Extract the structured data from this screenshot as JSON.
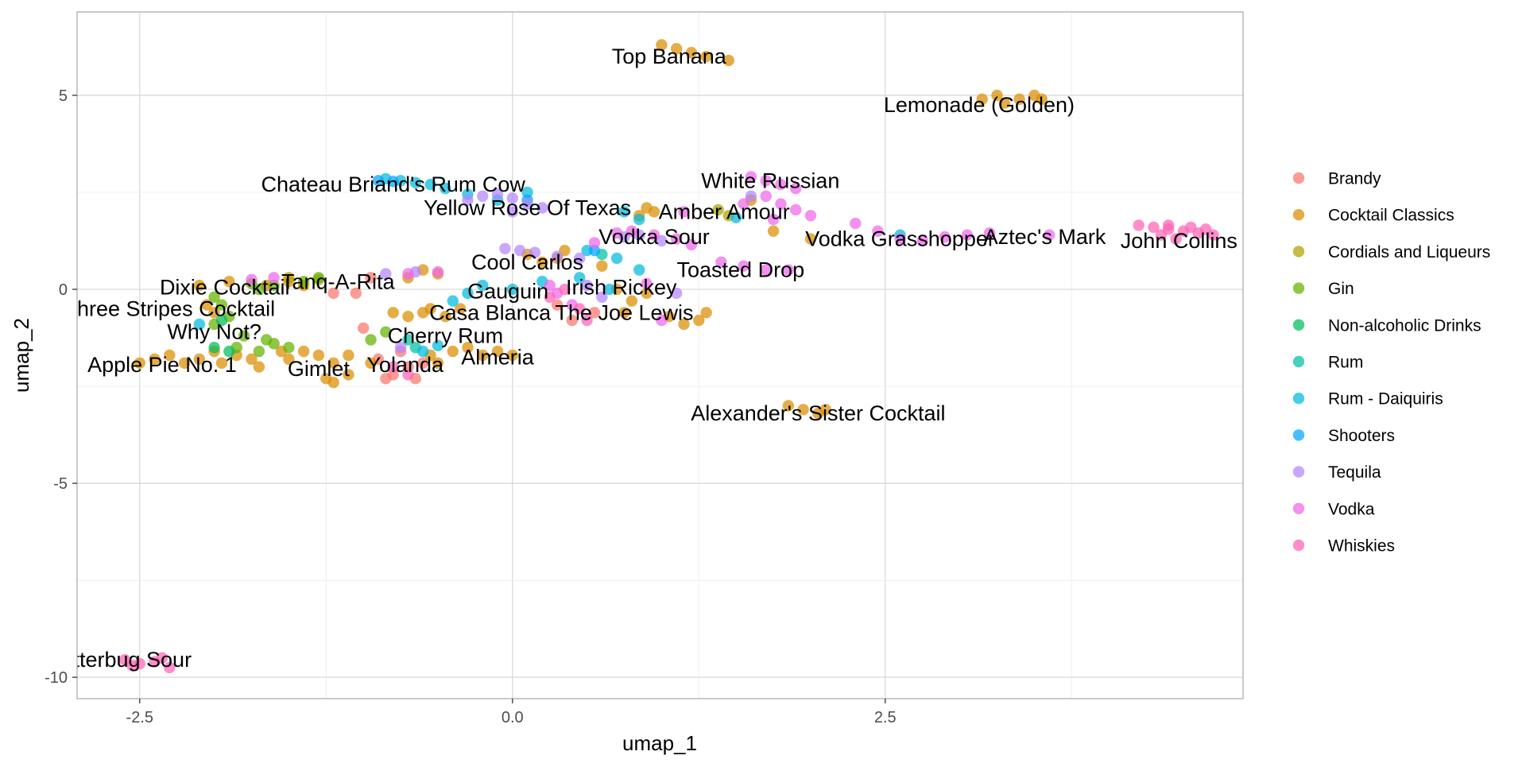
{
  "chart_data": {
    "type": "scatter",
    "title": "",
    "xlabel": "umap_1",
    "ylabel": "umap_2",
    "xlim": [
      -2.92,
      4.9
    ],
    "ylim": [
      -10.55,
      7.15
    ],
    "x_ticks": [
      -2.5,
      0.0,
      2.5
    ],
    "x_tick_labels": [
      "-2.5",
      "0.0",
      "2.5"
    ],
    "y_ticks": [
      5,
      0,
      -5,
      -10
    ],
    "y_tick_labels": [
      "5",
      "0",
      "-5",
      "-10"
    ],
    "grid": true,
    "legend_position": "right",
    "legend_entries": [
      "Brandy",
      "Cocktail Classics",
      "Cordials and Liqueurs",
      "Gin",
      "Non-alcoholic Drinks",
      "Rum",
      "Rum - Daiquiris",
      "Shooters",
      "Tequila",
      "Vodka",
      "Whiskies"
    ],
    "series_colors": [
      "#F8766D",
      "#DB8E00",
      "#AEA200",
      "#64B200",
      "#00BD5C",
      "#00C1A7",
      "#00BADE",
      "#00A6FF",
      "#B385FF",
      "#EF67EB",
      "#FF63B6"
    ],
    "series": [
      {
        "name": "Brandy",
        "points": [
          [
            -1.0,
            -1.0
          ],
          [
            -0.9,
            -1.8
          ],
          [
            -0.8,
            -2.2
          ],
          [
            -0.7,
            -2.0
          ],
          [
            -0.65,
            -2.3
          ],
          [
            -0.85,
            -2.3
          ],
          [
            -0.75,
            -1.6
          ],
          [
            -0.6,
            -1.9
          ],
          [
            0.4,
            -0.8
          ],
          [
            0.55,
            -0.6
          ],
          [
            0.3,
            -0.4
          ],
          [
            -1.2,
            -0.1
          ],
          [
            -1.05,
            -0.1
          ],
          [
            -0.95,
            0.3
          ]
        ]
      },
      {
        "name": "Cocktail Classics",
        "points": [
          [
            -2.5,
            -1.9
          ],
          [
            -2.4,
            -1.8
          ],
          [
            -2.3,
            -1.7
          ],
          [
            -2.2,
            -1.9
          ],
          [
            -2.1,
            -1.8
          ],
          [
            -2.0,
            -1.6
          ],
          [
            -1.95,
            -1.9
          ],
          [
            -1.85,
            -1.7
          ],
          [
            -1.75,
            -1.8
          ],
          [
            -1.7,
            -2.0
          ],
          [
            -1.55,
            -1.6
          ],
          [
            -1.5,
            -1.8
          ],
          [
            -1.4,
            -1.6
          ],
          [
            -1.3,
            -1.7
          ],
          [
            -1.2,
            -1.9
          ],
          [
            -1.1,
            -1.7
          ],
          [
            -1.2,
            -2.4
          ],
          [
            -1.1,
            -2.2
          ],
          [
            -1.25,
            -2.3
          ],
          [
            -0.95,
            -1.9
          ],
          [
            -0.55,
            -1.7
          ],
          [
            -0.5,
            -1.9
          ],
          [
            -0.4,
            -1.6
          ],
          [
            -0.3,
            -1.5
          ],
          [
            -0.2,
            -1.7
          ],
          [
            -0.1,
            -1.6
          ],
          [
            0.0,
            -1.7
          ],
          [
            -0.8,
            -0.6
          ],
          [
            -0.7,
            -0.7
          ],
          [
            -0.6,
            -0.6
          ],
          [
            -0.55,
            -0.5
          ],
          [
            -0.45,
            -0.7
          ],
          [
            -0.35,
            -0.5
          ],
          [
            -0.6,
            0.5
          ],
          [
            -0.7,
            0.3
          ],
          [
            -0.5,
            0.4
          ],
          [
            -2.1,
            0.1
          ],
          [
            -2.05,
            -0.4
          ],
          [
            -2.0,
            -0.6
          ],
          [
            -1.9,
            0.2
          ],
          [
            -1.65,
            0.1
          ],
          [
            -1.5,
            0.2
          ],
          [
            -1.4,
            0.1
          ],
          [
            0.1,
            0.9
          ],
          [
            0.2,
            0.7
          ],
          [
            0.3,
            0.8
          ],
          [
            0.35,
            1.0
          ],
          [
            0.6,
            0.6
          ],
          [
            0.7,
            0.0
          ],
          [
            0.8,
            -0.3
          ],
          [
            0.9,
            -0.1
          ],
          [
            0.75,
            -0.6
          ],
          [
            0.85,
            1.9
          ],
          [
            0.9,
            2.1
          ],
          [
            0.95,
            2.0
          ],
          [
            1.05,
            -0.7
          ],
          [
            1.15,
            -0.9
          ],
          [
            1.25,
            -0.8
          ],
          [
            1.3,
            -0.6
          ],
          [
            1.0,
            6.3
          ],
          [
            1.1,
            6.2
          ],
          [
            1.2,
            6.1
          ],
          [
            1.3,
            6.0
          ],
          [
            1.45,
            5.9
          ],
          [
            3.15,
            4.9
          ],
          [
            3.25,
            5.0
          ],
          [
            3.3,
            4.8
          ],
          [
            3.4,
            4.9
          ],
          [
            3.5,
            5.0
          ],
          [
            3.55,
            4.9
          ],
          [
            1.85,
            -3.0
          ],
          [
            1.95,
            -3.1
          ],
          [
            2.05,
            -3.2
          ],
          [
            2.1,
            -3.1
          ],
          [
            1.6,
            2.3
          ],
          [
            1.75,
            1.5
          ],
          [
            2.0,
            1.3
          ]
        ]
      },
      {
        "name": "Cordials and Liqueurs",
        "points": [
          [
            1.38,
            2.05
          ],
          [
            1.45,
            1.9
          ],
          [
            -1.5,
            0.3
          ],
          [
            -1.3,
            0.25
          ]
        ]
      },
      {
        "name": "Gin",
        "points": [
          [
            -1.6,
            -1.4
          ],
          [
            -1.5,
            -1.5
          ],
          [
            -1.7,
            -1.6
          ],
          [
            -1.85,
            -1.5
          ],
          [
            -1.8,
            -1.2
          ],
          [
            -1.65,
            -1.3
          ],
          [
            -2.0,
            -0.9
          ],
          [
            -1.9,
            -0.7
          ],
          [
            -1.95,
            -0.4
          ],
          [
            -2.0,
            -0.2
          ],
          [
            -1.6,
            0.1
          ],
          [
            -1.7,
            0.0
          ],
          [
            -1.75,
            0.15
          ],
          [
            -1.3,
            0.3
          ],
          [
            -1.4,
            0.2
          ],
          [
            -0.95,
            -1.3
          ],
          [
            -0.85,
            -1.1
          ]
        ]
      },
      {
        "name": "Non-alcoholic Drinks",
        "points": [
          [
            -1.9,
            -1.6
          ],
          [
            -2.0,
            -1.5
          ],
          [
            -1.95,
            -0.8
          ]
        ]
      },
      {
        "name": "Rum",
        "points": [
          [
            -0.65,
            -1.5
          ],
          [
            -0.7,
            -1.3
          ],
          [
            0.6,
            0.9
          ]
        ]
      },
      {
        "name": "Rum - Daiquiris",
        "points": [
          [
            -0.85,
            2.85
          ],
          [
            -0.75,
            2.8
          ],
          [
            -0.65,
            2.75
          ],
          [
            -0.55,
            2.7
          ],
          [
            -0.45,
            2.6
          ],
          [
            -0.3,
            2.45
          ],
          [
            0.1,
            2.5
          ],
          [
            -0.1,
            2.3
          ],
          [
            0.75,
            2.0
          ],
          [
            0.85,
            1.8
          ],
          [
            1.5,
            1.85
          ],
          [
            0.5,
            1.0
          ],
          [
            0.7,
            0.8
          ],
          [
            0.85,
            0.5
          ],
          [
            0.65,
            0.0
          ],
          [
            -0.4,
            -0.3
          ],
          [
            -0.3,
            -0.1
          ],
          [
            -0.2,
            0.1
          ],
          [
            0.0,
            0.0
          ],
          [
            0.2,
            0.2
          ],
          [
            0.45,
            0.3
          ],
          [
            -0.6,
            -1.6
          ],
          [
            -0.5,
            -1.45
          ],
          [
            -2.1,
            -0.9
          ],
          [
            2.6,
            1.4
          ]
        ]
      },
      {
        "name": "Shooters",
        "points": [
          [
            -0.9,
            2.8
          ],
          [
            -0.8,
            2.78
          ],
          [
            0.55,
            1.0
          ],
          [
            0.1,
            2.3
          ]
        ]
      },
      {
        "name": "Tequila",
        "points": [
          [
            -0.3,
            2.3
          ],
          [
            -0.2,
            2.4
          ],
          [
            -0.1,
            2.45
          ],
          [
            0.0,
            2.35
          ],
          [
            0.1,
            2.2
          ],
          [
            0.2,
            2.1
          ],
          [
            0.0,
            2.0
          ],
          [
            -0.05,
            1.05
          ],
          [
            0.05,
            1.0
          ],
          [
            0.15,
            0.95
          ],
          [
            0.3,
            0.85
          ],
          [
            0.45,
            0.8
          ],
          [
            0.75,
            1.35
          ],
          [
            0.85,
            1.4
          ],
          [
            1.0,
            1.25
          ],
          [
            0.5,
            0.1
          ],
          [
            0.6,
            -0.2
          ],
          [
            1.1,
            -0.1
          ],
          [
            -0.75,
            -1.5
          ],
          [
            -0.65,
            0.45
          ],
          [
            -0.85,
            0.4
          ],
          [
            1.6,
            2.4
          ]
        ]
      },
      {
        "name": "Vodka",
        "points": [
          [
            1.6,
            2.9
          ],
          [
            1.7,
            2.8
          ],
          [
            1.8,
            2.7
          ],
          [
            1.9,
            2.6
          ],
          [
            1.7,
            2.4
          ],
          [
            1.8,
            2.2
          ],
          [
            1.9,
            2.05
          ],
          [
            1.75,
            1.8
          ],
          [
            2.0,
            1.9
          ],
          [
            1.55,
            2.2
          ],
          [
            0.7,
            1.45
          ],
          [
            0.8,
            1.5
          ],
          [
            0.95,
            1.4
          ],
          [
            1.1,
            1.3
          ],
          [
            1.2,
            1.15
          ],
          [
            0.55,
            1.2
          ],
          [
            1.4,
            0.7
          ],
          [
            1.55,
            0.6
          ],
          [
            1.7,
            0.5
          ],
          [
            1.85,
            0.5
          ],
          [
            2.3,
            1.7
          ],
          [
            2.45,
            1.5
          ],
          [
            2.6,
            1.3
          ],
          [
            2.75,
            1.25
          ],
          [
            2.9,
            1.35
          ],
          [
            3.05,
            1.4
          ],
          [
            3.2,
            1.45
          ],
          [
            3.6,
            1.4
          ],
          [
            1.15,
            2.0
          ],
          [
            0.25,
            0.1
          ],
          [
            0.4,
            -0.4
          ],
          [
            -0.7,
            0.4
          ],
          [
            -0.5,
            0.45
          ],
          [
            -1.6,
            0.3
          ],
          [
            -1.75,
            0.25
          ],
          [
            0.3,
            -0.1
          ],
          [
            0.9,
            0.15
          ],
          [
            1.0,
            -0.8
          ]
        ]
      },
      {
        "name": "Whiskies",
        "points": [
          [
            4.2,
            1.65
          ],
          [
            4.3,
            1.6
          ],
          [
            4.4,
            1.55
          ],
          [
            4.5,
            1.5
          ],
          [
            4.6,
            1.45
          ],
          [
            4.35,
            1.4
          ],
          [
            4.45,
            1.3
          ],
          [
            4.55,
            1.6
          ],
          [
            4.65,
            1.55
          ],
          [
            4.7,
            1.4
          ],
          [
            4.4,
            1.65
          ],
          [
            -2.6,
            -9.55
          ],
          [
            -2.5,
            -9.65
          ],
          [
            -2.4,
            -9.6
          ],
          [
            -2.3,
            -9.75
          ],
          [
            -2.35,
            -9.5
          ],
          [
            -2.55,
            -9.7
          ],
          [
            0.25,
            -0.2
          ],
          [
            0.35,
            0.0
          ],
          [
            0.45,
            -0.5
          ],
          [
            0.5,
            -0.8
          ],
          [
            -0.7,
            -2.2
          ],
          [
            -0.8,
            -2.0
          ]
        ]
      }
    ],
    "annotations": [
      {
        "text": "Top Banana",
        "x": 1.05,
        "y": 6.0
      },
      {
        "text": "Lemonade (Golden)",
        "x": 3.13,
        "y": 4.75
      },
      {
        "text": "Chateau Briand's Rum Cow",
        "x": -0.8,
        "y": 2.7
      },
      {
        "text": "White Russian",
        "x": 1.73,
        "y": 2.8
      },
      {
        "text": "Yellow Rose Of Texas",
        "x": 0.1,
        "y": 2.1
      },
      {
        "text": "Amber Amour",
        "x": 1.42,
        "y": 2.0
      },
      {
        "text": "Vodka Sour",
        "x": 0.95,
        "y": 1.35
      },
      {
        "text": "Vodka Grasshopper",
        "x": 2.6,
        "y": 1.3
      },
      {
        "text": "Aztec's Mark",
        "x": 3.57,
        "y": 1.35
      },
      {
        "text": "John Collins",
        "x": 4.47,
        "y": 1.25
      },
      {
        "text": "Cool Carlos",
        "x": 0.1,
        "y": 0.7
      },
      {
        "text": "Toasted Drop",
        "x": 1.53,
        "y": 0.5
      },
      {
        "text": "Tanq-A-Rita",
        "x": -1.17,
        "y": 0.2
      },
      {
        "text": "Dixie Cocktail",
        "x": -1.93,
        "y": 0.05
      },
      {
        "text": "Irish Rickey",
        "x": 0.73,
        "y": 0.05
      },
      {
        "text": "Gauguin",
        "x": -0.03,
        "y": -0.05
      },
      {
        "text": "Three Stripes Cocktail",
        "x": -2.3,
        "y": -0.5
      },
      {
        "text": "Casa Blanca",
        "x": -0.15,
        "y": -0.6
      },
      {
        "text": "The Joe Lewis",
        "x": 0.75,
        "y": -0.6
      },
      {
        "text": "Why Not?",
        "x": -2.0,
        "y": -1.1
      },
      {
        "text": "Cherry Rum",
        "x": -0.45,
        "y": -1.2
      },
      {
        "text": "Almeria",
        "x": -0.1,
        "y": -1.75
      },
      {
        "text": "Apple Pie No. 1",
        "x": -2.35,
        "y": -1.95
      },
      {
        "text": "Gimlet",
        "x": -1.3,
        "y": -2.05
      },
      {
        "text": "Yolanda",
        "x": -0.72,
        "y": -1.95
      },
      {
        "text": "Alexander's Sister Cocktail",
        "x": 2.05,
        "y": -3.2
      },
      {
        "text": "Jitterbug Sour",
        "x": -2.6,
        "y": -9.55
      }
    ]
  }
}
